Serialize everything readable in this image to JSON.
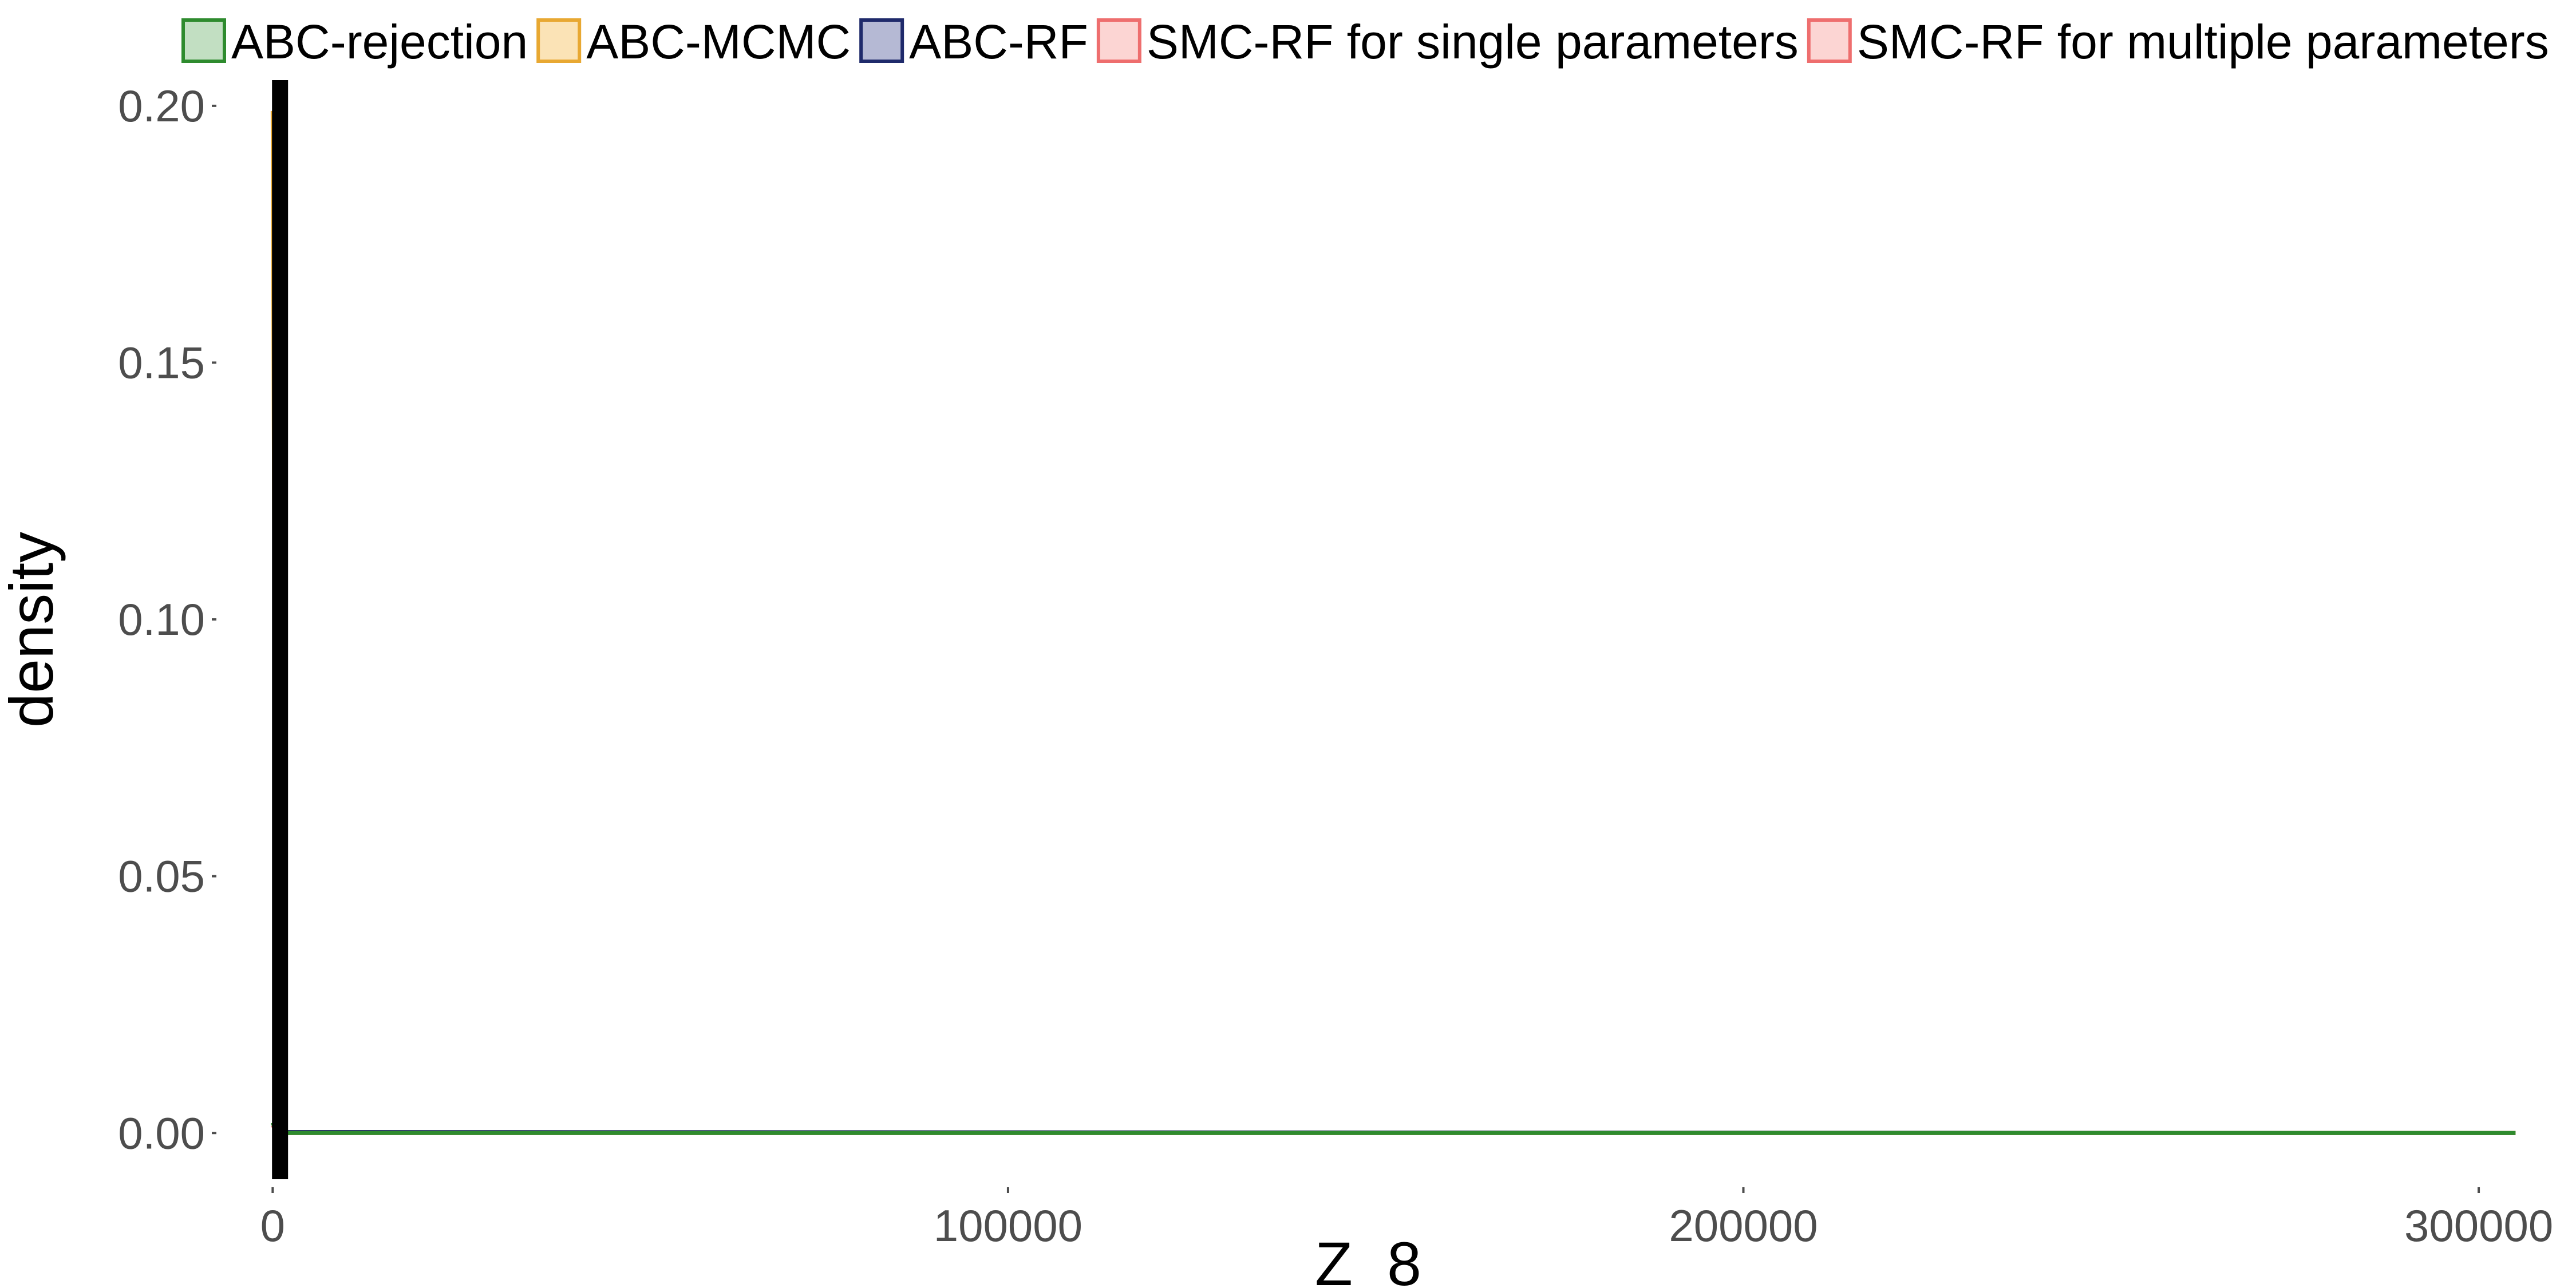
{
  "chart_data": {
    "type": "area",
    "xlabel": "Z_8",
    "ylabel": "density",
    "xlim": [
      -7500,
      307000
    ],
    "ylim": [
      -0.009,
      0.205
    ],
    "x_ticks": [
      0,
      100000,
      200000,
      300000
    ],
    "x_tick_labels": [
      "0",
      "100000",
      "200000",
      "300000"
    ],
    "y_ticks": [
      0,
      0.05,
      0.1,
      0.15,
      0.2
    ],
    "y_tick_labels": [
      "0.00",
      "0.05",
      "0.10",
      "0.15",
      "0.20"
    ],
    "grid": false,
    "legend_position": "top",
    "reference_line": {
      "x": 1000,
      "color": "#000000"
    },
    "series": [
      {
        "name": "ABC-rejection",
        "stroke": "#2e8b2e",
        "fill": "#c2dfc2",
        "points": [
          [
            0,
            0.002
          ],
          [
            400,
            0.0005
          ],
          [
            1500,
            0
          ],
          [
            305000,
            0
          ]
        ]
      },
      {
        "name": "ABC-MCMC",
        "stroke": "#e8a832",
        "fill": "#fbe3b6",
        "points": [
          [
            0,
            0.199
          ],
          [
            300,
            0.08
          ],
          [
            700,
            0.012
          ],
          [
            1400,
            0
          ],
          [
            305000,
            0
          ]
        ]
      },
      {
        "name": "ABC-RF",
        "stroke": "#1f2a6b",
        "fill": "#b5b9d4",
        "points": [
          [
            0,
            0.001
          ],
          [
            2000,
            0.0002
          ],
          [
            305000,
            0
          ]
        ]
      },
      {
        "name": "SMC-RF for single parameters",
        "stroke": "#ee6e6e",
        "fill": "#fcd5d3",
        "points": [
          [
            0,
            0.0015
          ],
          [
            600,
            0.0003
          ],
          [
            1500,
            0
          ],
          [
            305000,
            0
          ]
        ]
      },
      {
        "name": "SMC-RF for multiple parameters",
        "stroke": "#ee6e6e",
        "fill": "#fcd5d3",
        "points": [
          [
            0,
            0.0015
          ],
          [
            600,
            0.0003
          ],
          [
            1500,
            0
          ],
          [
            305000,
            0
          ]
        ]
      }
    ]
  }
}
